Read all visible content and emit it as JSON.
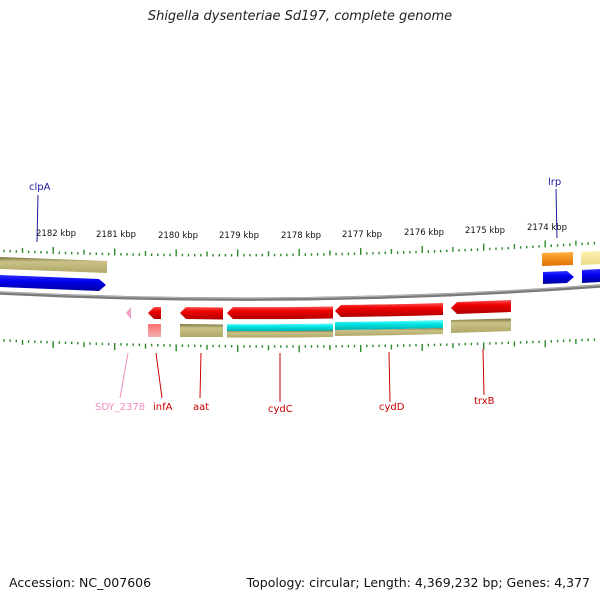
{
  "title": "Shigella dysenteriae Sd197, complete genome",
  "footer": {
    "accession": "Accession: NC_007606",
    "summary": "Topology: circular; Length: 4,369,232 bp; Genes: 4,377"
  },
  "ruler": {
    "ticks": [
      "2182 kbp",
      "2181 kbp",
      "2180 kbp",
      "2179 kbp",
      "2178 kbp",
      "2177 kbp",
      "2176 kbp",
      "2175 kbp",
      "2174 kbp"
    ]
  },
  "colors": {
    "cds": "#ee0000",
    "gene": "#b8b070",
    "rna": "#00e5e5",
    "blue": "#0000ee",
    "orange": "#ff8c00",
    "pink": "#f090c0",
    "pale_yellow": "#f0e29a",
    "ruler": "#2a8a2a",
    "backbone": "#777777"
  },
  "labels": {
    "top": [
      {
        "name": "clpA",
        "color": "#1a1a99"
      },
      {
        "name": "lrp",
        "color": "#1a1a99"
      }
    ],
    "bottom": [
      {
        "name": "SDY_2378",
        "color": "#f08cc0"
      },
      {
        "name": "infA",
        "color": "#cc0000"
      },
      {
        "name": "aat",
        "color": "#cc0000"
      },
      {
        "name": "cydC",
        "color": "#cc0000"
      },
      {
        "name": "cydD",
        "color": "#cc0000"
      },
      {
        "name": "trxB",
        "color": "#cc0000"
      }
    ]
  }
}
